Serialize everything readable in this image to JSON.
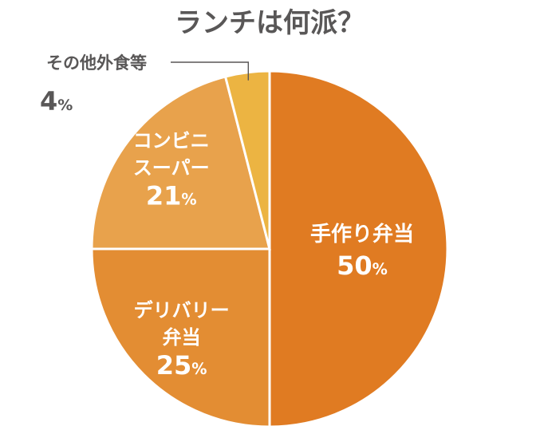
{
  "chart_data": {
    "type": "pie",
    "title": "ランチは何派？",
    "categories": [
      "手作り弁当",
      "デリバリー弁当",
      "コンビニスーパー",
      "その他外食等"
    ],
    "values": [
      50,
      25,
      21,
      4
    ],
    "unit": "%",
    "slices": [
      {
        "name": "手作り弁当",
        "lines": [
          "手作り弁当"
        ],
        "value": 50,
        "value_label": "50",
        "color": "#E07B22"
      },
      {
        "name": "デリバリー弁当",
        "lines": [
          "デリバリー",
          "弁当"
        ],
        "value": 25,
        "value_label": "25",
        "color": "#E38D33"
      },
      {
        "name": "コンビニスーパー",
        "lines": [
          "コンビニ",
          "スーパー"
        ],
        "value": 21,
        "value_label": "21",
        "color": "#E8A24C"
      },
      {
        "name": "その他外食等",
        "lines": [
          "その他外食等"
        ],
        "value": 4,
        "value_label": "4",
        "color": "#ECB442"
      }
    ],
    "start": "12 o'clock",
    "direction": "clockwise",
    "separator_color": "#ffffff",
    "legend": "none",
    "label_placement": "inside slices; smallest slice labeled outside with leader line (top-left)"
  }
}
